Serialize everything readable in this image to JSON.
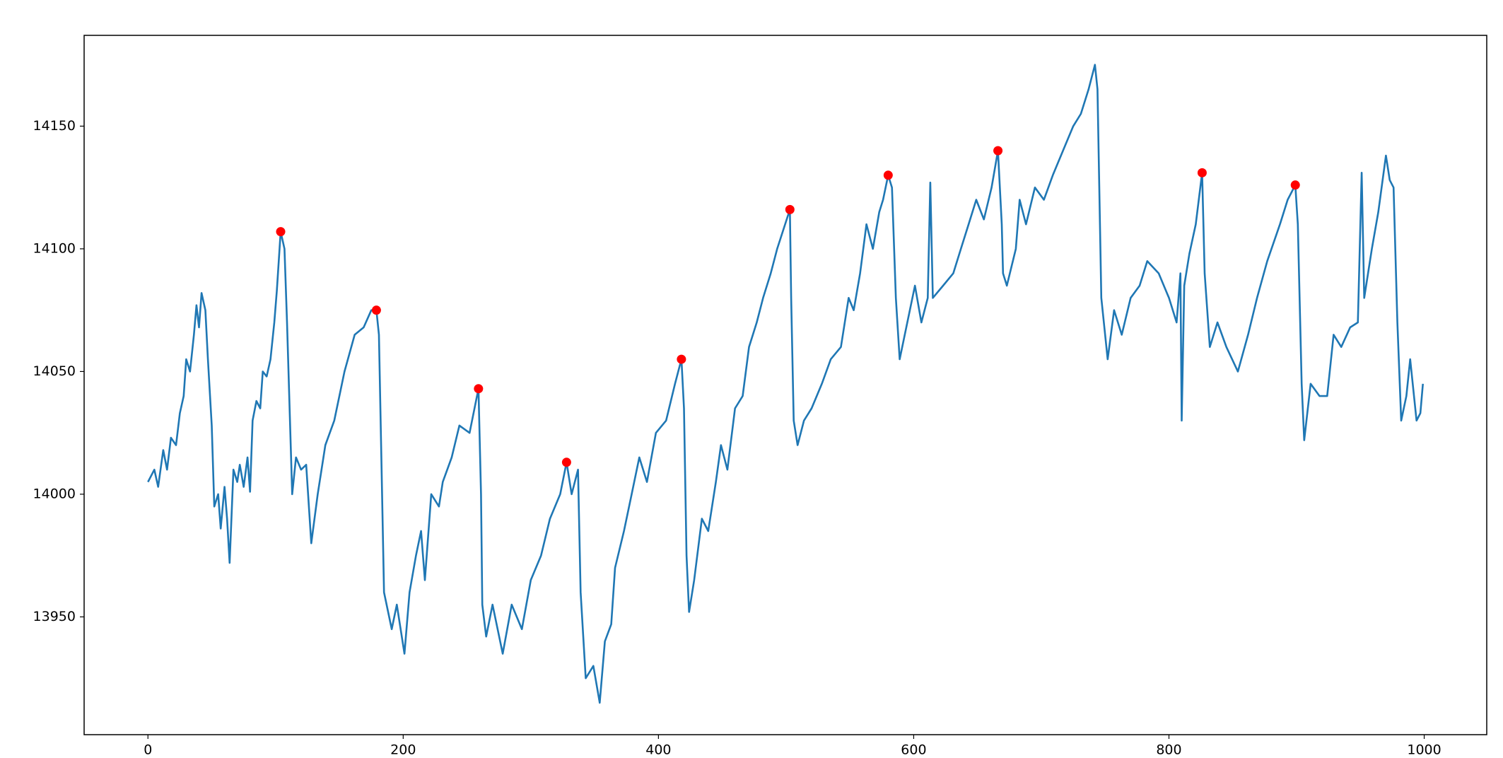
{
  "chart_data": {
    "type": "line",
    "x": [
      0,
      5,
      8,
      12,
      15,
      18,
      22,
      25,
      28,
      30,
      33,
      36,
      38,
      40,
      42,
      45,
      47,
      50,
      52,
      55,
      57,
      60,
      62,
      64,
      67,
      70,
      72,
      75,
      78,
      80,
      82,
      85,
      88,
      90,
      93,
      96,
      99,
      101,
      104,
      107,
      109,
      113,
      116,
      120,
      124,
      128,
      133,
      139,
      146,
      154,
      162,
      169,
      175,
      179,
      181,
      185,
      191,
      195,
      201,
      205,
      210,
      214,
      217,
      222,
      228,
      231,
      238,
      244,
      252,
      259,
      261,
      262,
      265,
      270,
      278,
      285,
      293,
      300,
      308,
      315,
      323,
      328,
      332,
      337,
      339,
      343,
      349,
      354,
      358,
      363,
      366,
      373,
      379,
      385,
      391,
      398,
      406,
      413,
      418,
      420,
      422,
      424,
      428,
      434,
      439,
      445,
      449,
      454,
      460,
      466,
      471,
      477,
      482,
      488,
      493,
      503,
      504,
      506,
      509,
      514,
      520,
      528,
      535,
      543,
      549,
      553,
      558,
      563,
      568,
      573,
      576,
      580,
      583,
      586,
      589,
      595,
      601,
      606,
      611,
      613,
      615,
      623,
      631,
      637,
      643,
      649,
      655,
      661,
      666,
      669,
      670,
      673,
      680,
      683,
      688,
      695,
      702,
      709,
      717,
      725,
      731,
      737,
      742,
      744,
      747,
      750,
      752,
      757,
      763,
      770,
      777,
      783,
      792,
      800,
      806,
      809,
      810,
      812,
      816,
      821,
      826,
      828,
      832,
      838,
      845,
      854,
      862,
      869,
      877,
      887,
      893,
      899,
      901,
      904,
      906,
      911,
      918,
      924,
      929,
      935,
      942,
      948,
      951,
      953,
      959,
      964,
      970,
      973,
      976,
      979,
      982,
      986,
      989,
      994,
      997,
      999
    ],
    "series": [
      {
        "color": "#1f77b4",
        "values": [
          14005,
          14010,
          14003,
          14018,
          14010,
          14023,
          14020,
          14033,
          14040,
          14055,
          14050,
          14065,
          14077,
          14068,
          14082,
          14075,
          14055,
          14028,
          13995,
          14000,
          13986,
          14003,
          13990,
          13972,
          14010,
          14005,
          14012,
          14003,
          14015,
          14001,
          14030,
          14038,
          14035,
          14050,
          14048,
          14055,
          14070,
          14083,
          14107,
          14100,
          14070,
          14000,
          14015,
          14010,
          14012,
          13980,
          14000,
          14020,
          14030,
          14050,
          14065,
          14068,
          14075,
          14075,
          14065,
          13960,
          13945,
          13955,
          13935,
          13960,
          13975,
          13985,
          13965,
          14000,
          13995,
          14005,
          14015,
          14028,
          14025,
          14043,
          14000,
          13955,
          13942,
          13955,
          13935,
          13955,
          13945,
          13965,
          13975,
          13990,
          14000,
          14013,
          14000,
          14010,
          13960,
          13925,
          13930,
          13915,
          13940,
          13947,
          13970,
          13985,
          14000,
          14015,
          14005,
          14025,
          14030,
          14045,
          14055,
          14035,
          13975,
          13952,
          13965,
          13990,
          13985,
          14005,
          14020,
          14010,
          14035,
          14040,
          14060,
          14070,
          14080,
          14090,
          14100,
          14116,
          14080,
          14030,
          14020,
          14030,
          14035,
          14045,
          14055,
          14060,
          14080,
          14075,
          14090,
          14110,
          14100,
          14115,
          14120,
          14130,
          14125,
          14080,
          14055,
          14070,
          14085,
          14070,
          14080,
          14127,
          14080,
          14085,
          14090,
          14100,
          14110,
          14120,
          14112,
          14125,
          14140,
          14110,
          14090,
          14085,
          14100,
          14120,
          14110,
          14125,
          14120,
          14130,
          14140,
          14150,
          14155,
          14165,
          14175,
          14165,
          14080,
          14065,
          14055,
          14075,
          14065,
          14080,
          14085,
          14095,
          14090,
          14080,
          14070,
          14090,
          14030,
          14085,
          14098,
          14110,
          14131,
          14090,
          14060,
          14070,
          14060,
          14050,
          14065,
          14080,
          14095,
          14110,
          14120,
          14126,
          14110,
          14045,
          14022,
          14045,
          14040,
          14040,
          14065,
          14060,
          14068,
          14070,
          14131,
          14080,
          14100,
          14115,
          14138,
          14128,
          14125,
          14070,
          14030,
          14040,
          14055,
          14030,
          14033,
          14045
        ]
      }
    ],
    "markers": {
      "color": "red",
      "x": [
        104,
        179,
        259,
        328,
        418,
        503,
        580,
        666,
        826,
        899
      ],
      "values": [
        14107,
        14075,
        14043,
        14013,
        14055,
        14116,
        14130,
        14140,
        14131,
        14126
      ]
    },
    "xlim": [
      -50,
      1049
    ],
    "ylim": [
      13902,
      14187
    ],
    "xticks": [
      0,
      200,
      400,
      600,
      800,
      1000
    ],
    "yticks": [
      13950,
      14000,
      14050,
      14100,
      14150
    ]
  }
}
